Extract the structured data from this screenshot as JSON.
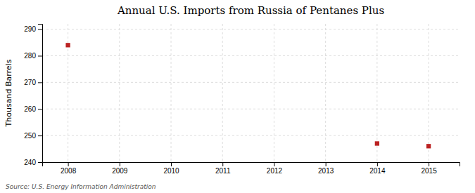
{
  "chart_data": {
    "type": "scatter",
    "title": "Annual U.S. Imports from Russia of Pentanes Plus",
    "ylabel": "Thousand Barrels",
    "annotations": [
      "Source: U.S. Energy Information Administration"
    ],
    "x": [
      2008,
      2014,
      2015
    ],
    "values": [
      284,
      247,
      246
    ],
    "color": "#bb2222",
    "marker": "square",
    "xlim": [
      2007.5,
      2015.6
    ],
    "ylim": [
      240,
      292
    ],
    "xticks": [
      2008,
      2009,
      2010,
      2011,
      2012,
      2013,
      2014,
      2015
    ],
    "yticks": [
      240,
      250,
      260,
      270,
      280,
      290
    ],
    "grid": true
  }
}
